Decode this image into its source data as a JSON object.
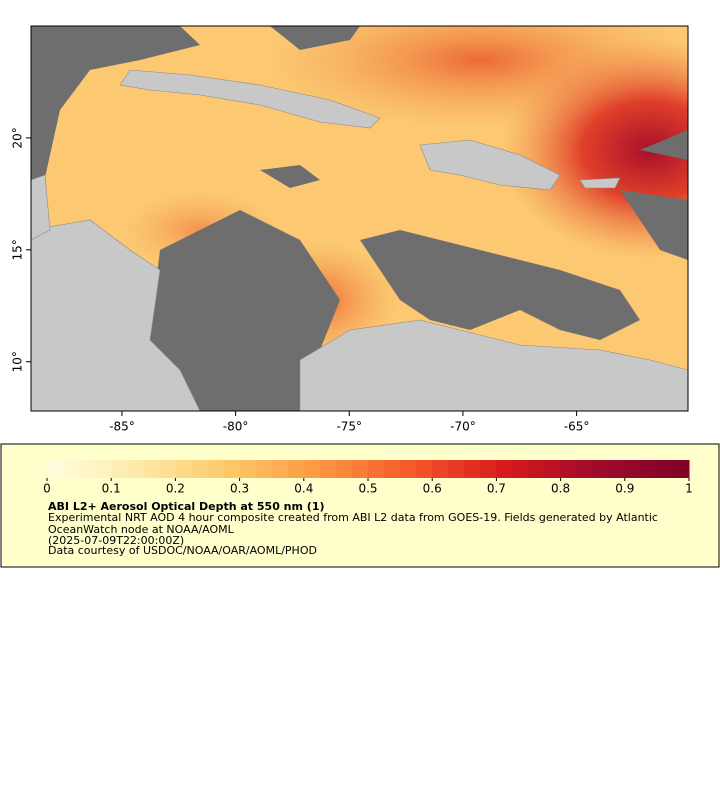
{
  "map": {
    "xlim": [
      -89,
      -60.1
    ],
    "ylim": [
      7.8,
      25
    ],
    "xticks": [
      {
        "value": -85,
        "label": "-85°"
      },
      {
        "value": -80,
        "label": "-80°"
      },
      {
        "value": -75,
        "label": "-75°"
      },
      {
        "value": -70,
        "label": "-70°"
      },
      {
        "value": -65,
        "label": "-65°"
      }
    ],
    "yticks": [
      {
        "value": 10,
        "label": "10°"
      },
      {
        "value": 15,
        "label": "15°"
      },
      {
        "value": 20,
        "label": "20°"
      }
    ]
  },
  "legend": {
    "colorbar": {
      "lim": [
        0,
        1
      ],
      "ticks": [
        0,
        0.1,
        0.2,
        0.3,
        0.4,
        0.5,
        0.6,
        0.7,
        0.8,
        0.9,
        1
      ],
      "colors": [
        "#ffffe0",
        "#fee9a8",
        "#fdc866",
        "#fd9640",
        "#f4572a",
        "#d7191c",
        "#9e0b2c",
        "#800026"
      ]
    },
    "title": "ABI L2+ Aerosol Optical Depth at 550 nm (1)",
    "lines": [
      "Experimental NRT AOD 4 hour composite created from ABI L2 data from GOES-19. Fields generated by Atlantic",
      "OceanWatch node at NOAA/AOML",
      "(2025-07-09T22:00:00Z)",
      "Data courtesy of USDOC/NOAA/OAR/AOML/PHOD"
    ]
  }
}
